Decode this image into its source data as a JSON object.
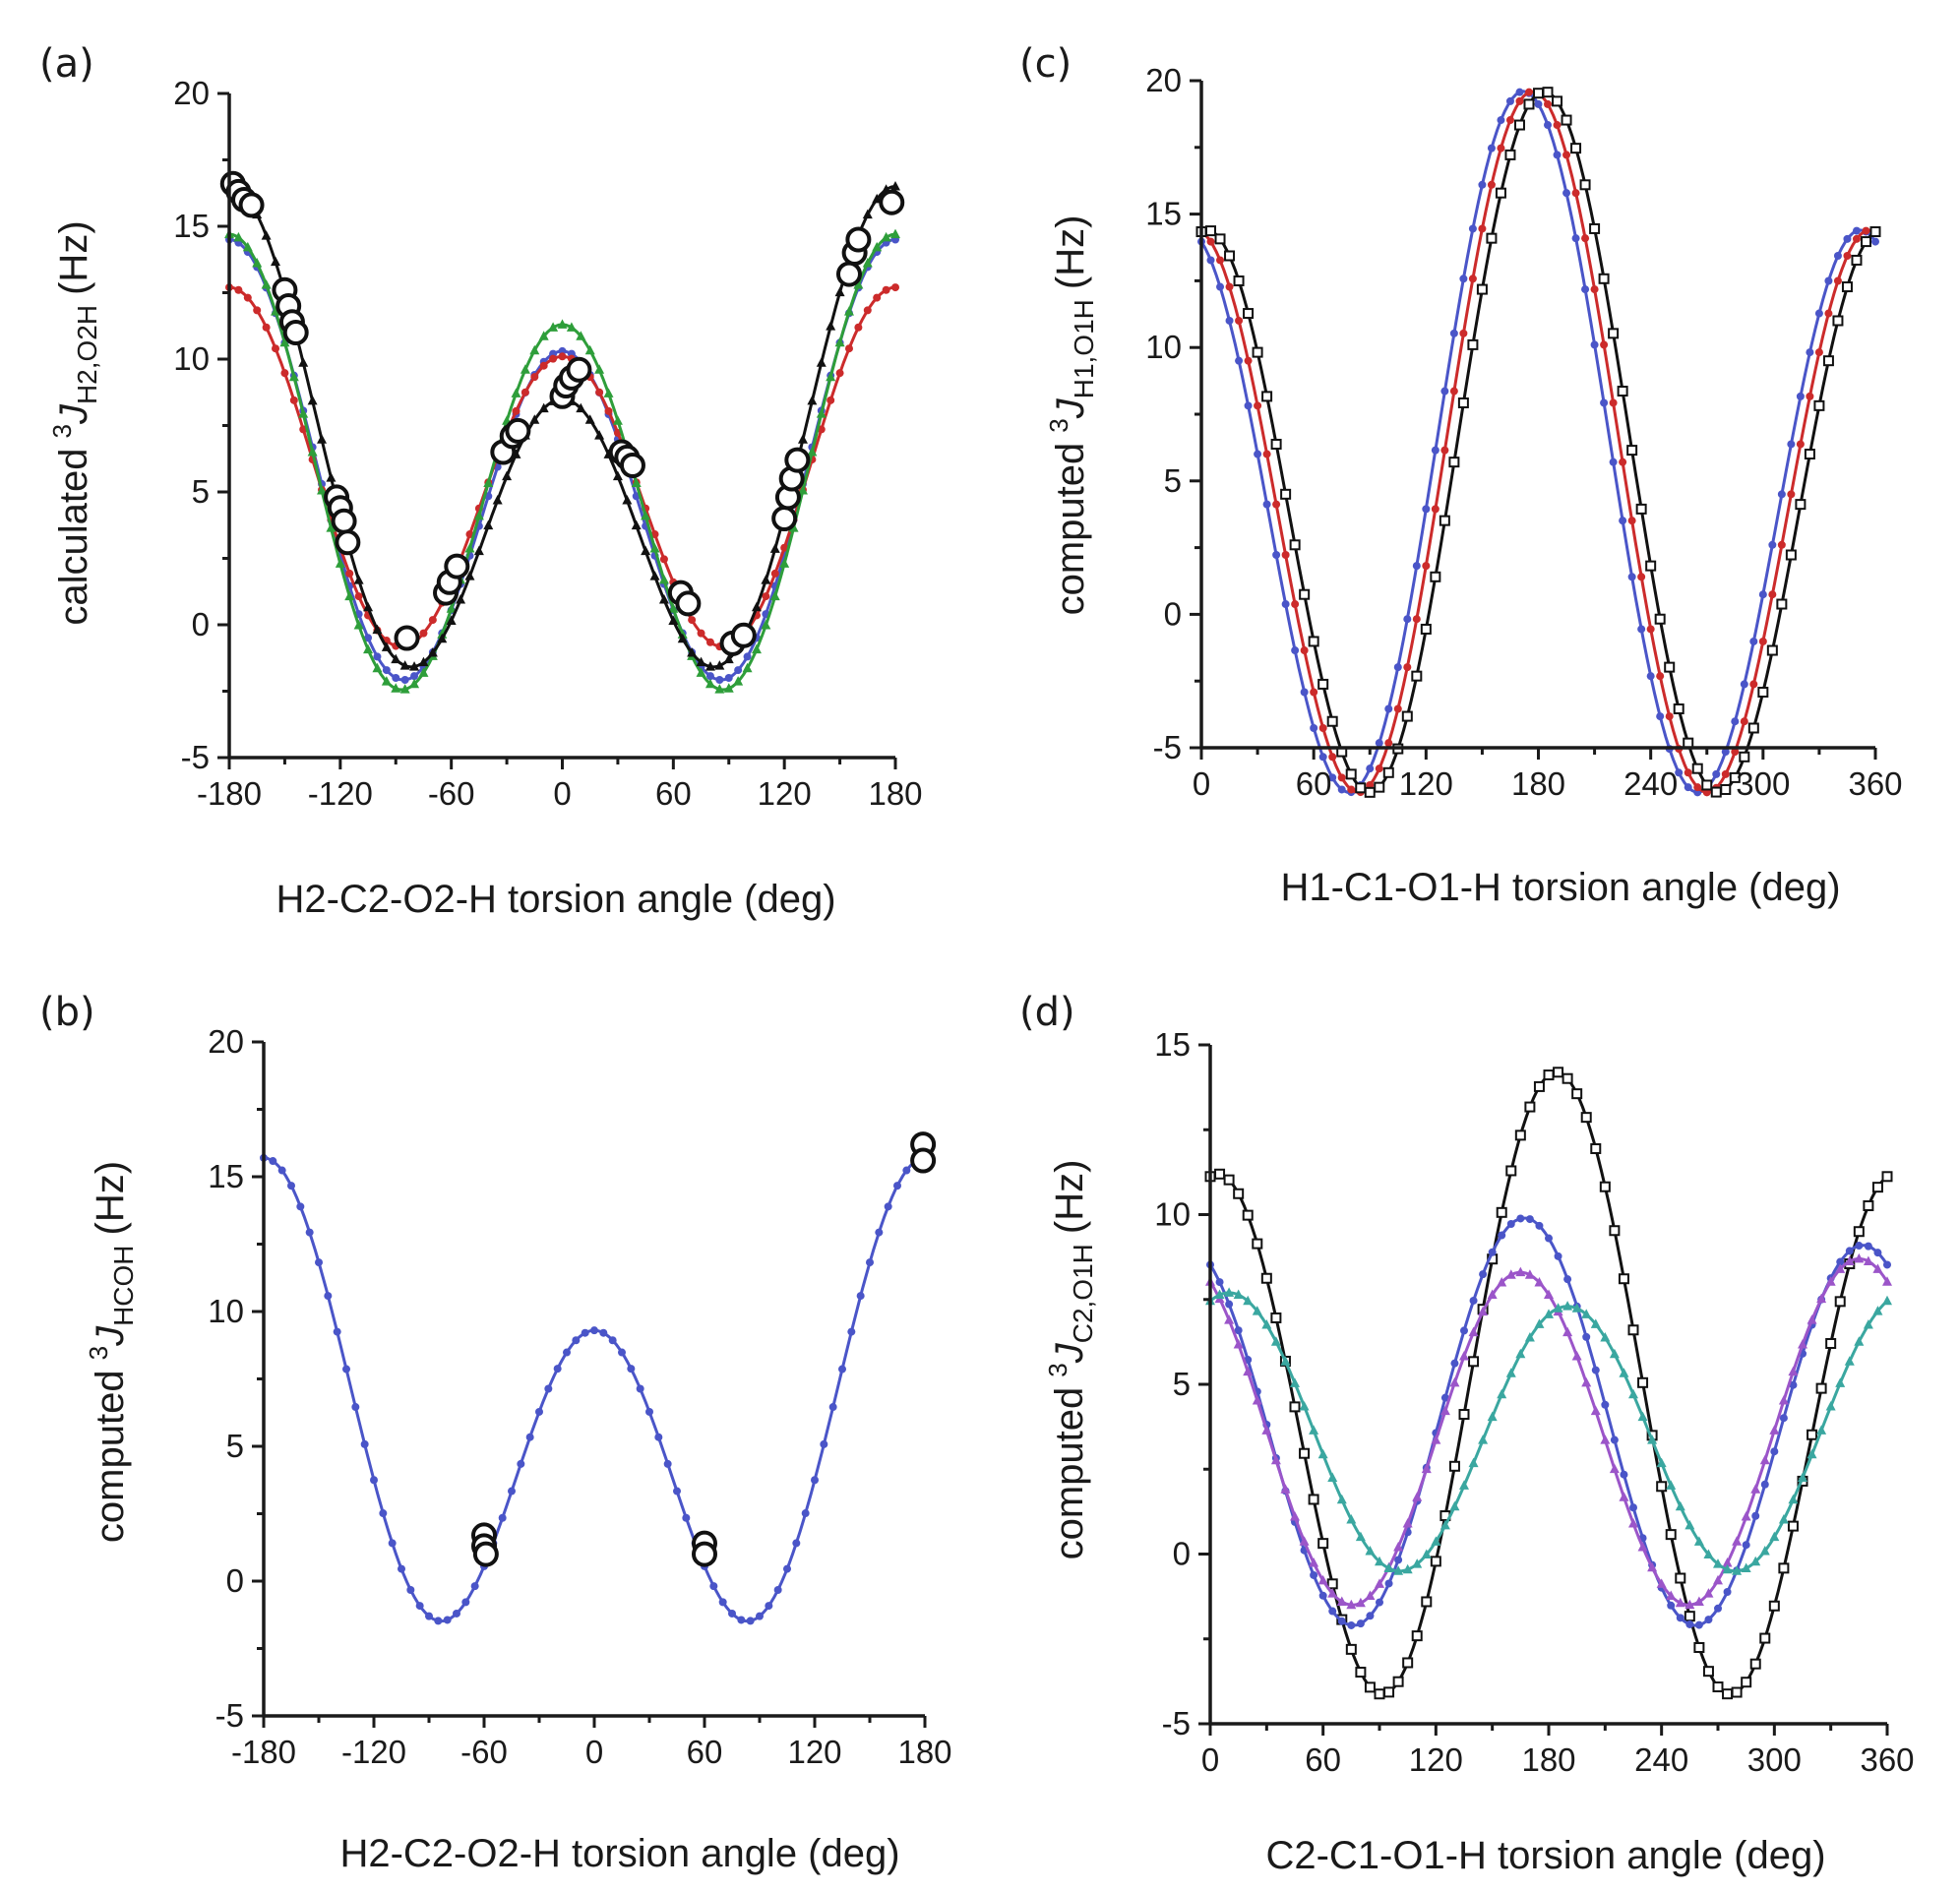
{
  "chart_data": [
    {
      "panel": "(a)",
      "type": "line",
      "xlabel": "H2-C2-O2-H torsion angle (deg)",
      "ylabel_prefix": "calculated",
      "ylabel_sup": "3",
      "ylabel_J": "J",
      "ylabel_sub": "H2,O2H",
      "ylabel_unit": "(Hz)",
      "xlim": [
        -180,
        180
      ],
      "ylim": [
        -5,
        20
      ],
      "xticks": [
        "-180",
        "-120",
        "-60",
        "0",
        "60",
        "120",
        "180"
      ],
      "yticks": [
        "-5",
        "0",
        "5",
        "10",
        "15",
        "20"
      ],
      "series": [
        {
          "name": "blue",
          "color": "#4a55c8",
          "marker": "dot",
          "model": {
            "A": 5.2,
            "B": -2.1,
            "C": 7.2,
            "phase": 0
          }
        },
        {
          "name": "red",
          "color": "#cc2b2b",
          "marker": "dot",
          "model": {
            "A": 5.3,
            "B": -1.3,
            "C": 6.1,
            "phase": 0
          }
        },
        {
          "name": "green",
          "color": "#2e9e3a",
          "marker": "triangle",
          "model": {
            "A": 5.3,
            "B": -1.7,
            "C": 7.7,
            "phase": 0
          }
        },
        {
          "name": "black",
          "color": "#111111",
          "marker": "triangle",
          "model": {
            "A": 5.6,
            "B": -4.0,
            "C": 6.9,
            "phase": 0
          }
        }
      ],
      "points": [
        {
          "x": -178,
          "y": 16.6
        },
        {
          "x": -175,
          "y": 16.3
        },
        {
          "x": -172,
          "y": 16.0
        },
        {
          "x": -168,
          "y": 15.8
        },
        {
          "x": -150,
          "y": 12.6
        },
        {
          "x": -148,
          "y": 12.0
        },
        {
          "x": -146,
          "y": 11.4
        },
        {
          "x": -144,
          "y": 11.0
        },
        {
          "x": -122,
          "y": 4.8
        },
        {
          "x": -120,
          "y": 4.4
        },
        {
          "x": -118,
          "y": 3.9
        },
        {
          "x": -116,
          "y": 3.1
        },
        {
          "x": -84,
          "y": -0.5
        },
        {
          "x": -63,
          "y": 1.2
        },
        {
          "x": -61,
          "y": 1.6
        },
        {
          "x": -57,
          "y": 2.2
        },
        {
          "x": -32,
          "y": 6.5
        },
        {
          "x": -27,
          "y": 7.1
        },
        {
          "x": -24,
          "y": 7.3
        },
        {
          "x": 0,
          "y": 8.6
        },
        {
          "x": 2,
          "y": 9.0
        },
        {
          "x": 5,
          "y": 9.3
        },
        {
          "x": 9,
          "y": 9.6
        },
        {
          "x": 32,
          "y": 6.5
        },
        {
          "x": 35,
          "y": 6.3
        },
        {
          "x": 38,
          "y": 6.0
        },
        {
          "x": 64,
          "y": 1.2
        },
        {
          "x": 68,
          "y": 0.8
        },
        {
          "x": 92,
          "y": -0.7
        },
        {
          "x": 98,
          "y": -0.4
        },
        {
          "x": 120,
          "y": 4.0
        },
        {
          "x": 122,
          "y": 4.8
        },
        {
          "x": 124,
          "y": 5.5
        },
        {
          "x": 127,
          "y": 6.2
        },
        {
          "x": 155,
          "y": 13.2
        },
        {
          "x": 158,
          "y": 14.0
        },
        {
          "x": 160,
          "y": 14.5
        },
        {
          "x": 178,
          "y": 15.9
        }
      ]
    },
    {
      "panel": "(b)",
      "type": "line",
      "xlabel": "H2-C2-O2-H torsion angle (deg)",
      "ylabel_prefix": "computed",
      "ylabel_sup": "3",
      "ylabel_J": "J",
      "ylabel_sub": "HCOH",
      "ylabel_unit": "(Hz)",
      "xlim": [
        -180,
        180
      ],
      "ylim": [
        -5,
        20
      ],
      "xticks": [
        "-180",
        "-120",
        "-60",
        "0",
        "60",
        "120",
        "180"
      ],
      "yticks": [
        "-5",
        "0",
        "5",
        "10",
        "15",
        "20"
      ],
      "series": [
        {
          "name": "blue",
          "color": "#4a55c8",
          "marker": "dot",
          "model": {
            "A": 5.6,
            "B": -3.2,
            "C": 6.9,
            "phase": 0
          }
        }
      ],
      "points": [
        {
          "x": -60,
          "y": 1.7
        },
        {
          "x": -60,
          "y": 1.3
        },
        {
          "x": -59,
          "y": 1.0
        },
        {
          "x": 60,
          "y": 1.4
        },
        {
          "x": 60,
          "y": 1.0
        },
        {
          "x": 179,
          "y": 16.2
        },
        {
          "x": 179,
          "y": 15.6
        }
      ]
    },
    {
      "panel": "(c)",
      "type": "line",
      "xlabel": "H1-C1-O1-H torsion angle (deg)",
      "ylabel_prefix": "computed",
      "ylabel_sup": "3",
      "ylabel_J": "J",
      "ylabel_sub": "H1,O1H",
      "ylabel_unit": "(Hz)",
      "xlim": [
        0,
        360
      ],
      "ylim": [
        -5,
        20
      ],
      "xticks": [
        "0",
        "60",
        "120",
        "180",
        "240",
        "300",
        "360"
      ],
      "yticks": [
        "-5",
        "0",
        "5",
        "10",
        "15",
        "20"
      ],
      "series": [
        {
          "name": "blue",
          "color": "#4a55c8",
          "marker": "dot",
          "model": {
            "A": 5.2,
            "B": -2.6,
            "C": 11.8,
            "phase": 8
          }
        },
        {
          "name": "red",
          "color": "#cc2b2b",
          "marker": "dot",
          "model": {
            "A": 5.2,
            "B": -2.6,
            "C": 11.8,
            "phase": 3
          }
        },
        {
          "name": "black",
          "color": "#111111",
          "marker": "square",
          "model": {
            "A": 5.2,
            "B": -2.6,
            "C": 11.8,
            "phase": -3
          }
        }
      ],
      "points": []
    },
    {
      "panel": "(d)",
      "type": "line",
      "xlabel": "C2-C1-O1-H torsion angle (deg)",
      "ylabel_prefix": "computed",
      "ylabel_sup": "3",
      "ylabel_J": "J",
      "ylabel_sub": "C2,O1H",
      "ylabel_unit": "(Hz)",
      "xlim": [
        0,
        360
      ],
      "ylim": [
        -5,
        15
      ],
      "xticks": [
        "0",
        "60",
        "120",
        "180",
        "240",
        "300",
        "360"
      ],
      "yticks": [
        "-5",
        "0",
        "5",
        "10",
        "15"
      ],
      "series": [
        {
          "name": "black",
          "color": "#111111",
          "marker": "square",
          "model": {
            "A": 4.3,
            "B": -1.5,
            "C": 8.4,
            "phase": -4
          }
        },
        {
          "name": "blue",
          "color": "#4a55c8",
          "marker": "dot",
          "model": {
            "A": 3.7,
            "B": -0.4,
            "C": 5.8,
            "phase": 13
          }
        },
        {
          "name": "purple",
          "color": "#9b55c9",
          "marker": "triangle",
          "model": {
            "A": 3.5,
            "B": 0.2,
            "C": 5.0,
            "phase": 15
          }
        },
        {
          "name": "teal",
          "color": "#3aa7a0",
          "marker": "triangle",
          "model": {
            "A": 3.5,
            "B": 0.2,
            "C": 4.0,
            "phase": -10
          }
        }
      ],
      "points": []
    }
  ]
}
